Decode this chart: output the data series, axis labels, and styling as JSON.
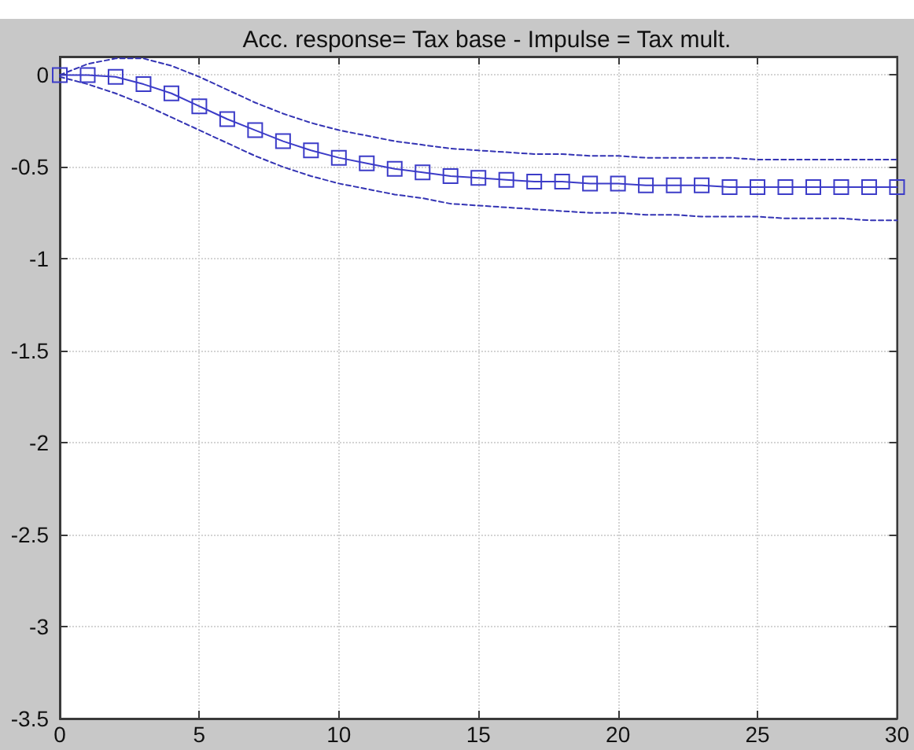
{
  "chart_data": {
    "type": "line",
    "title": "Acc. response= Tax base - Impulse = Tax mult.",
    "x": [
      0,
      1,
      2,
      3,
      4,
      5,
      6,
      7,
      8,
      9,
      10,
      11,
      12,
      13,
      14,
      15,
      16,
      17,
      18,
      19,
      20,
      21,
      22,
      23,
      24,
      25,
      26,
      27,
      28,
      29,
      30
    ],
    "series": [
      {
        "color": "#3c3cc8",
        "marker": "square",
        "line_style": "solid",
        "values": [
          0,
          0,
          -0.01,
          -0.05,
          -0.1,
          -0.17,
          -0.24,
          -0.3,
          -0.36,
          -0.41,
          -0.45,
          -0.48,
          -0.51,
          -0.53,
          -0.55,
          -0.56,
          -0.57,
          -0.58,
          -0.58,
          -0.59,
          -0.59,
          -0.6,
          -0.6,
          -0.6,
          -0.61,
          -0.61,
          -0.61,
          -0.61,
          -0.61,
          -0.61,
          -0.61
        ]
      },
      {
        "color": "#3434b4",
        "marker": "none",
        "line_style": "dashed",
        "values": [
          0,
          0.06,
          0.09,
          0.09,
          0.05,
          -0.01,
          -0.08,
          -0.15,
          -0.21,
          -0.26,
          -0.3,
          -0.33,
          -0.36,
          -0.38,
          -0.4,
          -0.41,
          -0.42,
          -0.43,
          -0.43,
          -0.44,
          -0.44,
          -0.45,
          -0.45,
          -0.45,
          -0.45,
          -0.46,
          -0.46,
          -0.46,
          -0.46,
          -0.46,
          -0.46
        ]
      },
      {
        "color": "#3434b4",
        "marker": "none",
        "line_style": "dashed",
        "values": [
          -0.01,
          -0.05,
          -0.1,
          -0.16,
          -0.23,
          -0.3,
          -0.37,
          -0.44,
          -0.5,
          -0.55,
          -0.59,
          -0.62,
          -0.65,
          -0.67,
          -0.7,
          -0.71,
          -0.72,
          -0.73,
          -0.74,
          -0.75,
          -0.75,
          -0.76,
          -0.76,
          -0.77,
          -0.77,
          -0.77,
          -0.78,
          -0.78,
          -0.78,
          -0.79,
          -0.79
        ]
      }
    ],
    "xlim": [
      0,
      30
    ],
    "xticks": [
      0,
      5,
      10,
      15,
      20,
      25,
      30
    ],
    "ylim": [
      -3.5,
      0.1
    ],
    "yticks": [
      -3.5,
      -3,
      -2.5,
      -2,
      -1.5,
      -1,
      -0.5,
      0
    ],
    "grid": true
  }
}
